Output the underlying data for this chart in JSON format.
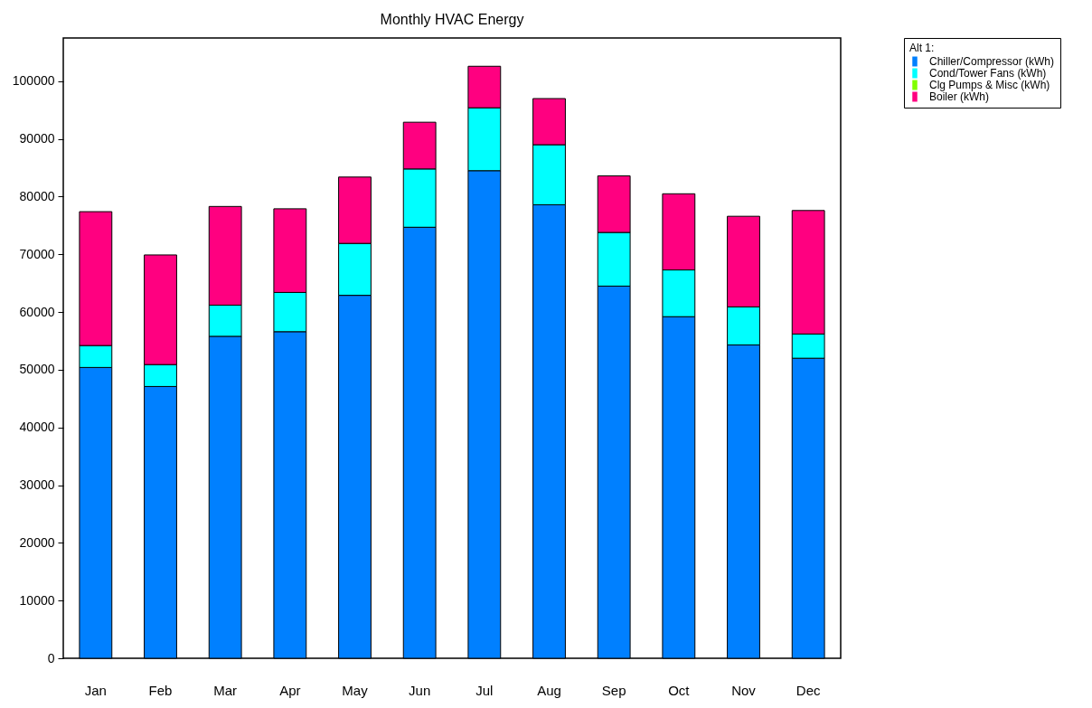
{
  "chart_data": {
    "type": "bar",
    "title": "Monthly HVAC Energy",
    "legend_title": "Alt 1:",
    "stacked": true,
    "legend": "top right",
    "ylim": [
      0,
      107500
    ],
    "yticks": [
      0,
      10000,
      20000,
      30000,
      40000,
      50000,
      60000,
      70000,
      80000,
      90000,
      100000
    ],
    "categories": [
      "Jan",
      "Feb",
      "Mar",
      "Apr",
      "May",
      "Jun",
      "Jul",
      "Aug",
      "Sep",
      "Oct",
      "Nov",
      "Dec"
    ],
    "series": [
      {
        "name": "Chiller/Compressor (kWh)",
        "color": "#0080ff",
        "values": [
          50400,
          47100,
          55800,
          56600,
          62900,
          74700,
          84500,
          78600,
          64500,
          59200,
          54300,
          52000
        ]
      },
      {
        "name": "Cond/Tower Fans (kWh)",
        "color": "#00ffff",
        "values": [
          3800,
          3800,
          5400,
          6800,
          9000,
          10100,
          10900,
          10400,
          9300,
          8100,
          6600,
          4200
        ]
      },
      {
        "name": "Clg Pumps & Misc (kWh)",
        "color": "#80ff00",
        "values": [
          null,
          null,
          null,
          null,
          null,
          null,
          null,
          null,
          null,
          null,
          null,
          null
        ]
      },
      {
        "name": "Boiler (kWh)",
        "color": "#ff0080",
        "values": [
          23200,
          19000,
          17100,
          14500,
          11500,
          8100,
          7200,
          8000,
          9800,
          13200,
          15700,
          21400
        ]
      }
    ]
  }
}
